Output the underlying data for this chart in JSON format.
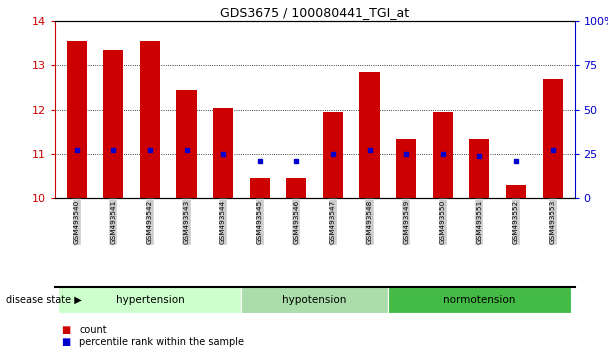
{
  "title": "GDS3675 / 100080441_TGI_at",
  "samples": [
    "GSM493540",
    "GSM493541",
    "GSM493542",
    "GSM493543",
    "GSM493544",
    "GSM493545",
    "GSM493546",
    "GSM493547",
    "GSM493548",
    "GSM493549",
    "GSM493550",
    "GSM493551",
    "GSM493552",
    "GSM493553"
  ],
  "bar_values": [
    13.55,
    13.35,
    13.55,
    12.45,
    12.05,
    10.45,
    10.45,
    11.95,
    12.85,
    11.35,
    11.95,
    11.35,
    10.3,
    12.7
  ],
  "percentile_values": [
    11.1,
    11.1,
    11.1,
    11.1,
    11.0,
    10.85,
    10.85,
    11.0,
    11.1,
    11.0,
    11.0,
    10.95,
    10.85,
    11.1
  ],
  "ylim_left": [
    10,
    14
  ],
  "ylim_right": [
    0,
    100
  ],
  "yticks_left": [
    10,
    11,
    12,
    13,
    14
  ],
  "yticks_right": [
    0,
    25,
    50,
    75,
    100
  ],
  "bar_color": "#cc0000",
  "dot_color": "#0000cc",
  "bar_width": 0.55,
  "groups": [
    {
      "label": "hypertension",
      "indices": [
        0,
        1,
        2,
        3,
        4
      ],
      "color": "#ccffcc"
    },
    {
      "label": "hypotension",
      "indices": [
        5,
        6,
        7,
        8
      ],
      "color": "#aaddaa"
    },
    {
      "label": "normotension",
      "indices": [
        9,
        10,
        11,
        12,
        13
      ],
      "color": "#44bb44"
    }
  ],
  "disease_state_label": "disease state",
  "legend_count_label": "count",
  "legend_percentile_label": "percentile rank within the sample",
  "tick_label_color": "#cc0000",
  "right_tick_color": "#0000cc",
  "xticklabel_bg": "#cccccc"
}
